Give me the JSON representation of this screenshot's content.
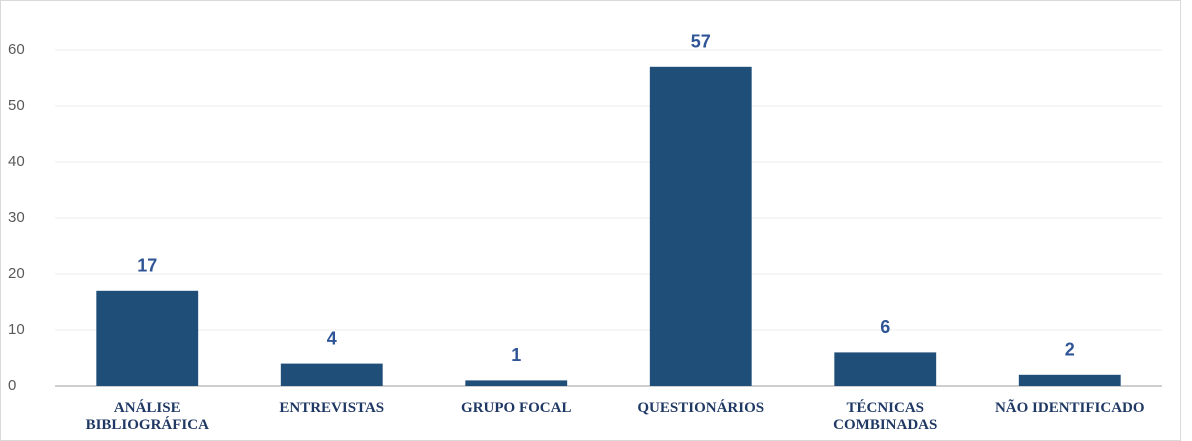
{
  "chart_data": {
    "type": "bar",
    "categories": [
      "ANÁLISE BIBLIOGRÁFICA",
      "ENTREVISTAS",
      "GRUPO FOCAL",
      "QUESTIONÁRIOS",
      "TÉCNICAS COMBINADAS",
      "NÃO IDENTIFICADO"
    ],
    "values": [
      17,
      4,
      1,
      57,
      6,
      2
    ],
    "color": "#1f4e79",
    "label_color": "#2f5597",
    "ylim": [
      0,
      60
    ],
    "yticks": [
      0,
      10,
      20,
      30,
      40,
      50,
      60
    ],
    "grid": true
  }
}
